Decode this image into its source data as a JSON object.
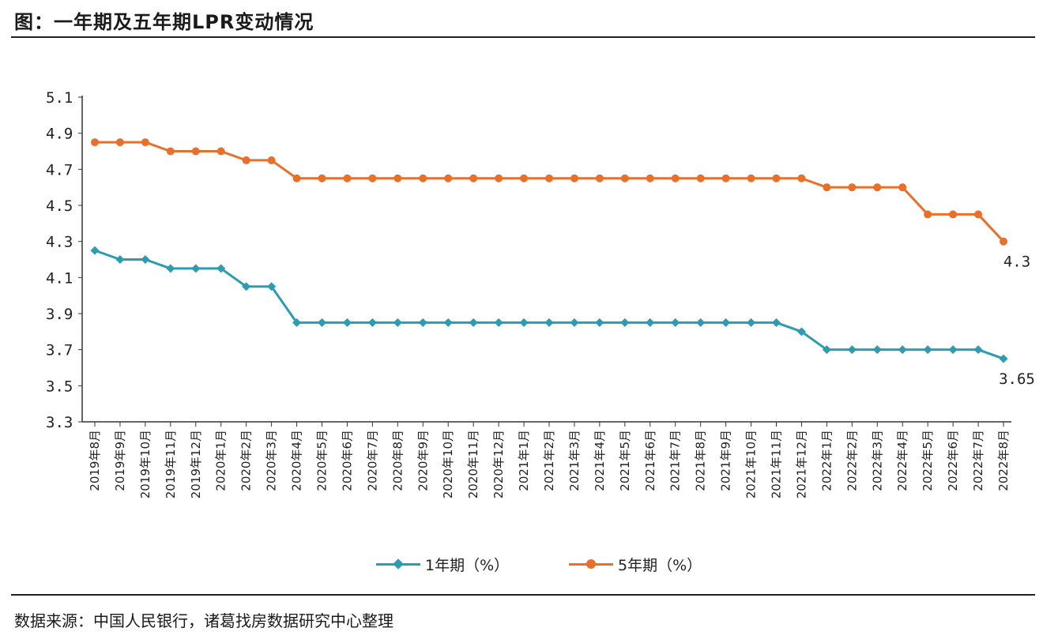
{
  "header": {
    "title": "图：一年期及五年期LPR变动情况"
  },
  "footer": {
    "source": "数据来源：中国人民银行，诸葛找房数据研究中心整理"
  },
  "chart_data": {
    "type": "line",
    "title": "图：一年期及五年期LPR变动情况",
    "xlabel": "",
    "ylabel": "",
    "ylim": [
      3.3,
      5.1
    ],
    "yticks": [
      "3.3",
      "3.5",
      "3.7",
      "3.9",
      "4.1",
      "4.3",
      "4.5",
      "4.7",
      "4.9",
      "5.1"
    ],
    "grid": false,
    "legend_position": "bottom",
    "categories": [
      "2019年8月",
      "2019年9月",
      "2019年10月",
      "2019年11月",
      "2019年12月",
      "2020年1月",
      "2020年2月",
      "2020年3月",
      "2020年4月",
      "2020年5月",
      "2020年6月",
      "2020年7月",
      "2020年8月",
      "2020年9月",
      "2020年10月",
      "2020年11月",
      "2020年12月",
      "2021年1月",
      "2021年2月",
      "2021年3月",
      "2021年4月",
      "2021年5月",
      "2021年6月",
      "2021年7月",
      "2021年8月",
      "2021年9月",
      "2021年10月",
      "2021年11月",
      "2021年12月",
      "2022年1月",
      "2022年2月",
      "2022年3月",
      "2022年4月",
      "2022年5月",
      "2022年6月",
      "2022年7月",
      "2022年8月"
    ],
    "series": [
      {
        "name": "1年期（%）",
        "color": "#2e9bb0",
        "marker": "diamond",
        "end_label": "3.65",
        "values": [
          4.25,
          4.2,
          4.2,
          4.15,
          4.15,
          4.15,
          4.05,
          4.05,
          3.85,
          3.85,
          3.85,
          3.85,
          3.85,
          3.85,
          3.85,
          3.85,
          3.85,
          3.85,
          3.85,
          3.85,
          3.85,
          3.85,
          3.85,
          3.85,
          3.85,
          3.85,
          3.85,
          3.85,
          3.8,
          3.7,
          3.7,
          3.7,
          3.7,
          3.7,
          3.7,
          3.7,
          3.65
        ]
      },
      {
        "name": "5年期（%）",
        "color": "#e8702a",
        "marker": "circle",
        "end_label": "4.3",
        "values": [
          4.85,
          4.85,
          4.85,
          4.8,
          4.8,
          4.8,
          4.75,
          4.75,
          4.65,
          4.65,
          4.65,
          4.65,
          4.65,
          4.65,
          4.65,
          4.65,
          4.65,
          4.65,
          4.65,
          4.65,
          4.65,
          4.65,
          4.65,
          4.65,
          4.65,
          4.65,
          4.65,
          4.65,
          4.65,
          4.6,
          4.6,
          4.6,
          4.6,
          4.45,
          4.45,
          4.45,
          4.3
        ]
      }
    ]
  }
}
